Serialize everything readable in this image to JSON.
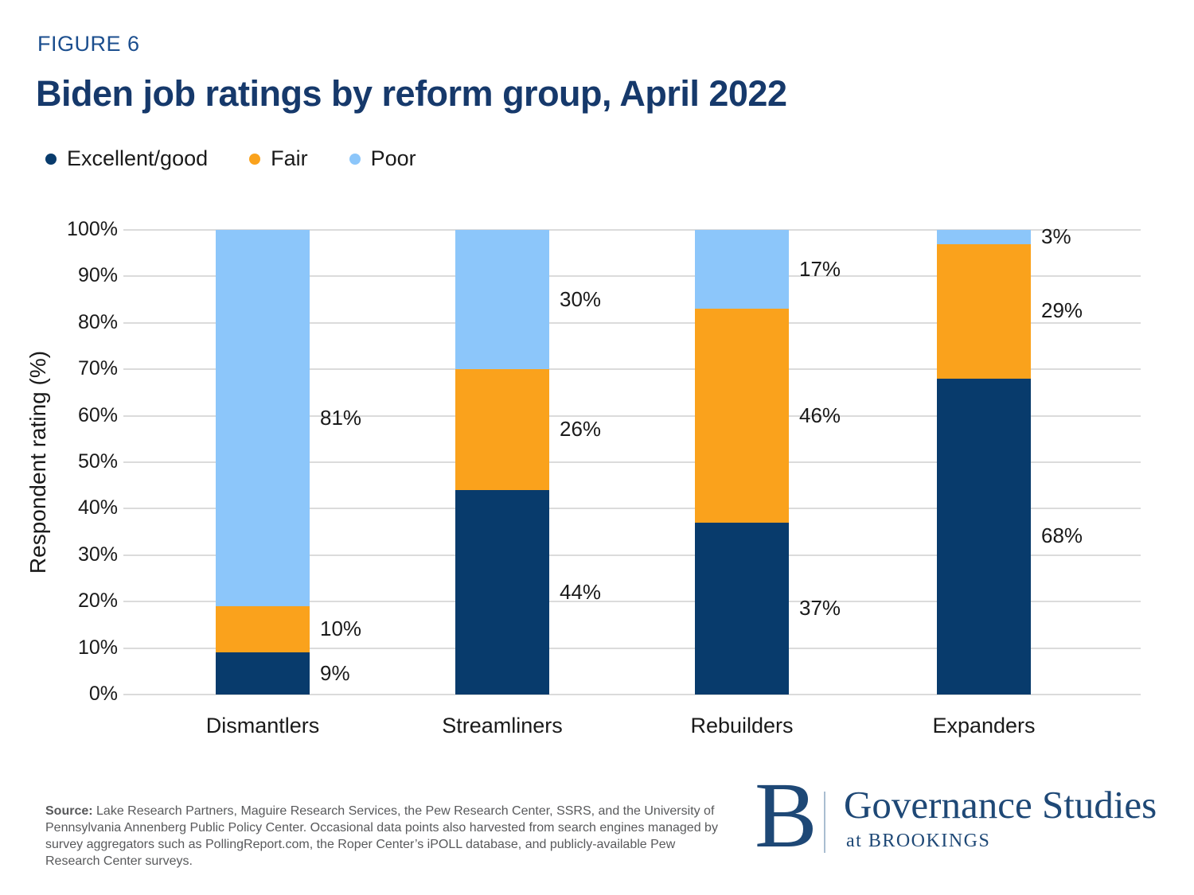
{
  "figure_label": "FIGURE 6",
  "title": "Biden job ratings by reform group, April 2022",
  "chart_data": {
    "type": "bar",
    "stacked": true,
    "title": "Biden job ratings by reform group, April 2022",
    "categories": [
      "Dismantlers",
      "Streamliners",
      "Rebuilders",
      "Expanders"
    ],
    "series": [
      {
        "name": "Excellent/good",
        "color": "#083B6C",
        "values": [
          9,
          44,
          37,
          68
        ]
      },
      {
        "name": "Fair",
        "color": "#FAA21C",
        "values": [
          10,
          26,
          46,
          29
        ]
      },
      {
        "name": "Poor",
        "color": "#8CC6FA",
        "values": [
          81,
          30,
          17,
          3
        ]
      }
    ],
    "xlabel": "",
    "ylabel": "Respondent rating (%)",
    "ylim": [
      0,
      100
    ],
    "ytick_step": 10,
    "ytick_suffix": "%",
    "label_suffix": "%",
    "grid": "horizontal",
    "gridline_color": "#DBDBDB",
    "legend_position": "top-left",
    "data_labels": {
      "Dismantlers": [
        "9%",
        "10%",
        "81%"
      ],
      "Streamliners": [
        "44%",
        "26%",
        "30%"
      ],
      "Rebuilders": [
        "37%",
        "46%",
        "17%"
      ],
      "Expanders": [
        "68%",
        "29%",
        "3%"
      ]
    }
  },
  "footer": {
    "source_label": "Source:",
    "source_text": " Lake Research Partners, Maguire Research Services, the Pew Research Center, SSRS, and the University of Pennsylvania Annenberg Public Policy Center. Occasional data points also harvested from search engines managed by survey aggregators such as PollingReport.com, the Roper Center’s iPOLL database, and publicly-available Pew Research Center surveys.",
    "logo": {
      "monogram": "B",
      "org": "Governance Studies",
      "suborg": "at BROOKINGS",
      "brand_color": "#1E4876"
    }
  }
}
